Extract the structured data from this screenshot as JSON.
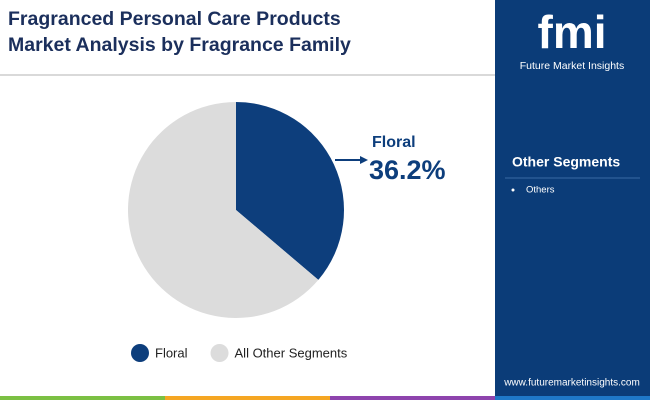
{
  "chart_data": {
    "type": "pie",
    "title": "Fragranced Personal Care Products Market Analysis by Fragrance Family",
    "categories": [
      "Floral",
      "All Other Segments"
    ],
    "values": [
      36.2,
      63.8
    ],
    "value_labels": [
      "36.2%",
      null
    ],
    "colors": [
      "#0d3e7c",
      "#dcdcdc"
    ],
    "legend": "bottom"
  },
  "sidebar": {
    "logo": "fmi",
    "brand": "Future Market Insights",
    "heading": "Other Segments",
    "items": [
      "Others"
    ],
    "url": "www.futuremarketinsights.com"
  }
}
